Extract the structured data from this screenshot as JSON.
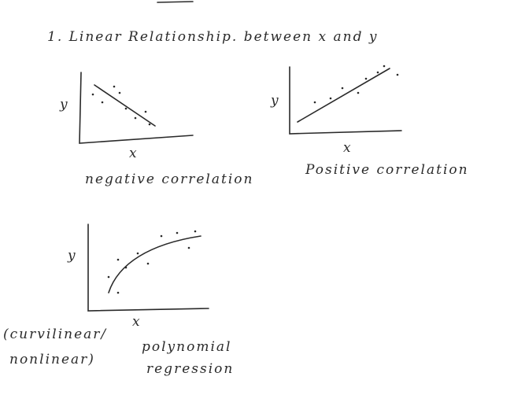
{
  "heading": "1. Linear Relationship. between x and y",
  "plots": [
    {
      "y_label": "y",
      "x_label": "x",
      "caption": "negative correlation"
    },
    {
      "y_label": "y",
      "x_label": "x",
      "caption": "Positive correlation"
    },
    {
      "y_label": "y",
      "x_label": "x",
      "caption": [
        "(curvilinear/",
        "nonlinear)"
      ],
      "note": [
        "polynomial",
        "regression"
      ]
    }
  ]
}
